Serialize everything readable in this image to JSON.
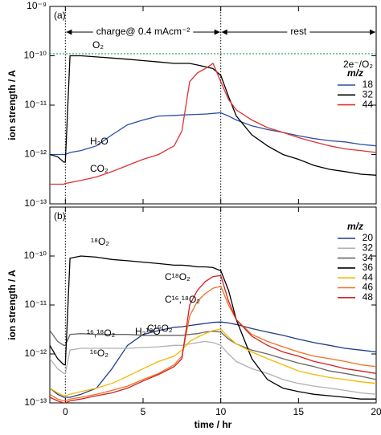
{
  "chart_data": [
    {
      "type": "line",
      "panel_label": "(a)",
      "xlabel": "time / hr",
      "ylabel": "ion strength / A",
      "log_y": true,
      "xlim": [
        -1,
        20
      ],
      "ylim": [
        1e-13,
        1e-09
      ],
      "xticks": [
        0,
        5,
        10,
        15,
        20
      ],
      "show_xtick_labels": false,
      "yticks": [
        {
          "value": 1e-09,
          "label": "10⁻⁹"
        },
        {
          "value": 1e-10,
          "label": "10⁻¹⁰"
        },
        {
          "value": 1e-11,
          "label": "10⁻¹¹"
        },
        {
          "value": 1e-12,
          "label": "10⁻¹²"
        },
        {
          "value": 1e-13,
          "label": "10⁻¹³"
        }
      ],
      "vlines": [
        0,
        10
      ],
      "phases": [
        "charge@ 0.4 mAcm⁻²",
        "rest"
      ],
      "hline": {
        "value": 1.1e-10,
        "color": "#2e9e5b",
        "label": "2e⁻/O₂"
      },
      "legend_title": "m/z",
      "legend": "right",
      "x": [
        -1,
        -0.5,
        -0.1,
        0,
        0.3,
        1,
        2,
        3,
        4,
        5,
        6,
        7,
        7.5,
        8,
        8.5,
        9,
        9.5,
        10,
        10.5,
        11,
        12,
        13,
        14,
        15,
        16,
        17,
        18,
        19,
        20
      ],
      "series": [
        {
          "name": "18",
          "color": "#2b4fa0",
          "values": [
            1e-12,
            1e-12,
            1e-12,
            1e-12,
            1.1e-12,
            1.2e-12,
            1.5e-12,
            2.5e-12,
            4e-12,
            5e-12,
            6e-12,
            6.2e-12,
            6.3e-12,
            6.4e-12,
            6.5e-12,
            6.6e-12,
            6.8e-12,
            7e-12,
            6e-12,
            5e-12,
            3.8e-12,
            3.2e-12,
            2.8e-12,
            2.4e-12,
            2.1e-12,
            1.9e-12,
            1.8e-12,
            1.6e-12,
            1.5e-12
          ]
        },
        {
          "name": "32",
          "color": "#000000",
          "values": [
            1e-12,
            9e-13,
            7e-13,
            7e-13,
            1e-10,
            1e-10,
            9.5e-11,
            9e-11,
            8.5e-11,
            8e-11,
            7.5e-11,
            7e-11,
            7e-11,
            7e-11,
            6.5e-11,
            6e-11,
            5.5e-11,
            4e-11,
            1.5e-11,
            6e-12,
            2.5e-12,
            1.5e-12,
            1e-12,
            8e-13,
            6e-13,
            5e-13,
            4.5e-13,
            4e-13,
            3.8e-13
          ]
        },
        {
          "name": "44",
          "color": "#e03030",
          "values": [
            2.5e-13,
            2.5e-13,
            2.5e-13,
            2.6e-13,
            2.7e-13,
            3e-13,
            3.5e-13,
            4.5e-13,
            6e-13,
            8e-13,
            1e-12,
            1.5e-12,
            3e-12,
            3e-11,
            4.5e-11,
            5.5e-11,
            7e-11,
            3e-11,
            1.3e-11,
            8e-12,
            5e-12,
            3.5e-12,
            2.8e-12,
            2.2e-12,
            1.8e-12,
            1.5e-12,
            1.3e-12,
            1.2e-12,
            1.1e-12
          ]
        }
      ],
      "annotations": [
        {
          "text": "O₂",
          "color": "#000000"
        },
        {
          "text": "H₂O",
          "color": "#2b4fa0"
        },
        {
          "text": "CO₂",
          "color": "#e03030"
        }
      ]
    },
    {
      "type": "line",
      "panel_label": "(b)",
      "xlabel": "time / hr",
      "ylabel": "ion strength / A",
      "log_y": true,
      "xlim": [
        -1,
        20
      ],
      "ylim": [
        1e-13,
        1e-09
      ],
      "xticks": [
        0,
        5,
        10,
        15,
        20
      ],
      "show_xtick_labels": true,
      "yticks": [
        {
          "value": 1e-10,
          "label": "10⁻¹⁰"
        },
        {
          "value": 1e-11,
          "label": "10⁻¹¹"
        },
        {
          "value": 1e-12,
          "label": "10⁻¹²"
        },
        {
          "value": 1e-13,
          "label": "10⁻¹³"
        }
      ],
      "vlines": [
        0,
        10
      ],
      "legend_title": "m/z",
      "legend": "right",
      "x": [
        -1,
        -0.5,
        -0.1,
        0,
        0.3,
        1,
        2,
        3,
        4,
        5,
        6,
        7,
        7.5,
        8,
        8.5,
        9,
        9.5,
        10,
        10.5,
        11,
        12,
        13,
        14,
        15,
        16,
        17,
        18,
        19,
        20
      ],
      "series": [
        {
          "name": "20",
          "color": "#1f3c88",
          "values": [
            2e-13,
            1.5e-13,
            1.3e-13,
            1.3e-13,
            1.3e-13,
            1.5e-13,
            2e-13,
            5e-13,
            1.5e-12,
            2.5e-12,
            3e-12,
            3.5e-12,
            3.6e-12,
            3.8e-12,
            4e-12,
            4.2e-12,
            4.4e-12,
            4.5e-12,
            4.3e-12,
            4e-12,
            3.3e-12,
            2.8e-12,
            2.4e-12,
            2e-12,
            1.7e-12,
            1.5e-12,
            1.3e-12,
            1.2e-12,
            1.1e-12
          ]
        },
        {
          "name": "32",
          "color": "#b0b0b0",
          "values": [
            8e-13,
            5e-13,
            4e-13,
            4e-13,
            1.2e-12,
            1.3e-12,
            1.3e-12,
            1.3e-12,
            1.3e-12,
            1.35e-12,
            1.4e-12,
            1.5e-12,
            1.5e-12,
            1.6e-12,
            1.7e-12,
            1.8e-12,
            1.7e-12,
            1.5e-12,
            1e-12,
            7e-13,
            5e-13,
            4e-13,
            3e-13,
            2.5e-13,
            2.2e-13,
            2e-13,
            1.8e-13,
            1.6e-13,
            1.5e-13
          ]
        },
        {
          "name": "34",
          "color": "#666666",
          "values": [
            3e-12,
            1.8e-12,
            1.5e-12,
            1.5e-12,
            2.5e-12,
            2.6e-12,
            2.5e-12,
            2.5e-12,
            2.5e-12,
            2.4e-12,
            2.4e-12,
            2.4e-12,
            2.4e-12,
            2.5e-12,
            2.6e-12,
            2.8e-12,
            2.9e-12,
            2.8e-12,
            2e-12,
            1.6e-12,
            1.2e-12,
            1e-12,
            8e-13,
            6.5e-13,
            5.5e-13,
            4.5e-13,
            4e-13,
            3.5e-13,
            3e-13
          ]
        },
        {
          "name": "36",
          "color": "#000000",
          "values": [
            1.5e-12,
            8e-13,
            6e-13,
            6e-13,
            9e-11,
            1e-10,
            9.5e-11,
            8.5e-11,
            8e-11,
            7.5e-11,
            7e-11,
            6.5e-11,
            6.5e-11,
            6.3e-11,
            6e-11,
            6e-11,
            5.8e-11,
            5e-11,
            2e-11,
            5e-12,
            8e-13,
            3e-13,
            2e-13,
            1.7e-13,
            1.5e-13,
            1.4e-13,
            1.3e-13,
            1.2e-13,
            1.2e-13
          ]
        },
        {
          "name": "44",
          "color": "#f5b800",
          "values": [
            2e-13,
            1.6e-13,
            1.4e-13,
            1.4e-13,
            1.5e-13,
            1.7e-13,
            2e-13,
            2.5e-13,
            3.5e-13,
            5e-13,
            7e-13,
            9e-13,
            1.2e-12,
            1.8e-12,
            2.2e-12,
            2.6e-12,
            3e-12,
            3.2e-12,
            2.2e-12,
            1.6e-12,
            1.1e-12,
            8e-13,
            6e-13,
            4.5e-13,
            3.8e-13,
            3.3e-13,
            3e-13,
            2.7e-13,
            2.5e-13
          ]
        },
        {
          "name": "46",
          "color": "#f07020",
          "values": [
            1.5e-13,
            1.2e-13,
            1.1e-13,
            1.1e-13,
            1.2e-13,
            1.3e-13,
            1.5e-13,
            1.8e-13,
            2.2e-13,
            3e-13,
            4e-13,
            6e-13,
            9e-13,
            6e-12,
            1.2e-11,
            1.7e-11,
            2.2e-11,
            2.4e-11,
            1e-11,
            5e-12,
            2.5e-12,
            1.8e-12,
            1.4e-12,
            1.1e-12,
            9e-13,
            8e-13,
            7e-13,
            6e-13,
            5.5e-13
          ]
        },
        {
          "name": "48",
          "color": "#d42020",
          "values": [
            1.3e-13,
            1.1e-13,
            1e-13,
            1e-13,
            1.1e-13,
            1.2e-13,
            1.4e-13,
            1.6e-13,
            2e-13,
            2.8e-13,
            3.8e-13,
            5.5e-13,
            8e-13,
            1e-11,
            2e-11,
            3e-11,
            3.8e-11,
            4e-11,
            1.2e-11,
            5e-12,
            2.3e-12,
            1.5e-12,
            1.1e-12,
            9e-13,
            7e-13,
            6e-13,
            5e-13,
            4.5e-13,
            4e-13
          ]
        }
      ],
      "annotations": [
        {
          "text": "¹⁸O₂",
          "color": "#000000"
        },
        {
          "text": "¹⁶,¹⁸O₂",
          "color": "#555555"
        },
        {
          "text": "¹⁶O₂",
          "color": "#999999"
        },
        {
          "text": "H₂¹⁸O",
          "color": "#1f3c88"
        },
        {
          "text": "C¹⁸O₂",
          "color": "#d42020"
        },
        {
          "text": "C¹⁶,¹⁸O₂",
          "color": "#f07020"
        },
        {
          "text": "C¹⁶O₂",
          "color": "#f5b800"
        }
      ]
    }
  ]
}
